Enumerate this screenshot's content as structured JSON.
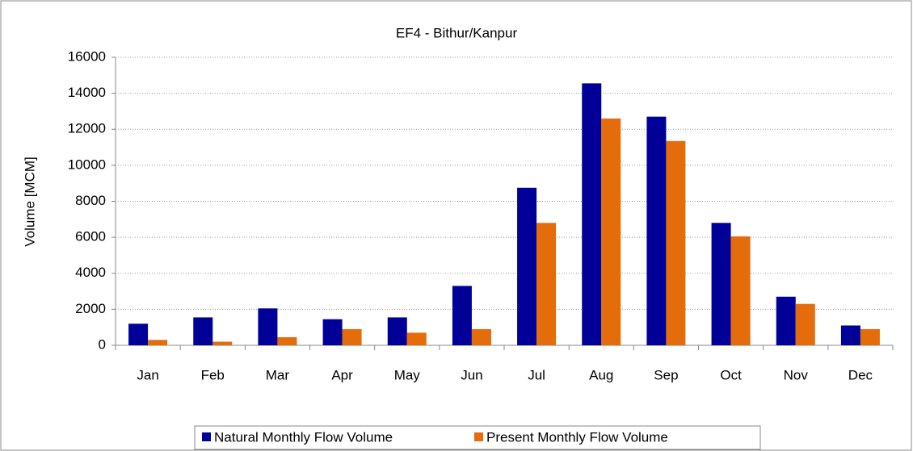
{
  "chart_data": {
    "type": "bar",
    "title": "EF4 - Bithur/Kanpur",
    "y_label": "Volume [MCM]",
    "categories": [
      "Jan",
      "Feb",
      "Mar",
      "Apr",
      "May",
      "Jun",
      "Jul",
      "Aug",
      "Sep",
      "Oct",
      "Nov",
      "Dec"
    ],
    "series": [
      {
        "name": "Natural Monthly Flow Volume",
        "color": "#000099",
        "values": [
          1200,
          1550,
          2050,
          1450,
          1550,
          3300,
          8750,
          14550,
          12700,
          6800,
          2700,
          1100
        ]
      },
      {
        "name": "Present Monthly Flow Volume",
        "color": "#e46c0a",
        "values": [
          300,
          200,
          450,
          900,
          700,
          900,
          6800,
          12600,
          11350,
          6050,
          2300,
          900
        ]
      }
    ],
    "ylim": [
      0,
      16000
    ],
    "yticks": [
      0,
      2000,
      4000,
      6000,
      8000,
      10000,
      12000,
      14000,
      16000
    ],
    "grid": true,
    "legend": "bottom"
  }
}
